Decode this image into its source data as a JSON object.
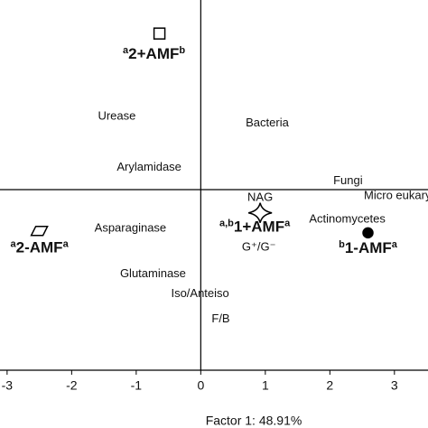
{
  "chart_data": {
    "type": "biplot",
    "x_label": "Factor 1: 48.91%",
    "xlim": [
      -3.11,
      3.52
    ],
    "xticks": [
      -3,
      -2,
      -1,
      0,
      1,
      2,
      3
    ],
    "ylim": [
      -2.8,
      2.94
    ],
    "treatments": [
      {
        "pre": "a",
        "label": "2+AMF",
        "post": "b",
        "marker": "square",
        "x": -0.64,
        "y": 2.42
      },
      {
        "pre": "a",
        "label": "2-AMF",
        "post": "a",
        "marker": "parallelogram",
        "x": -2.5,
        "y": -0.64
      },
      {
        "pre": "a,b",
        "label": "1+AMF",
        "post": "a",
        "marker": "star",
        "x": 0.92,
        "y": -0.36
      },
      {
        "pre": "b",
        "label": "1-AMF",
        "post": "a",
        "marker": "circle",
        "x": 2.59,
        "y": -0.67
      }
    ],
    "variables": [
      {
        "label": "Urease",
        "x": -1.3,
        "y": 1.13
      },
      {
        "label": "Bacteria",
        "x": 1.03,
        "y": 1.03
      },
      {
        "label": "Arylamidase",
        "x": -0.8,
        "y": 0.34
      },
      {
        "label": "Fungi",
        "x": 2.28,
        "y": 0.13
      },
      {
        "label": "Micro eukaryotes",
        "x": 3.22,
        "y": -0.1
      },
      {
        "label": "NAG",
        "x": 0.92,
        "y": -0.13
      },
      {
        "label": "Actinomycetes",
        "x": 2.27,
        "y": -0.46
      },
      {
        "label": "Asparaginase",
        "x": -1.09,
        "y": -0.6
      },
      {
        "label": "G⁺/G⁻",
        "x": 0.9,
        "y": -0.9
      },
      {
        "label": "Glutaminase",
        "x": -0.74,
        "y": -1.31
      },
      {
        "label": "Iso/Anteiso",
        "x": -0.01,
        "y": -1.62
      },
      {
        "label": "F/B",
        "x": 0.31,
        "y": -2.01
      }
    ]
  }
}
